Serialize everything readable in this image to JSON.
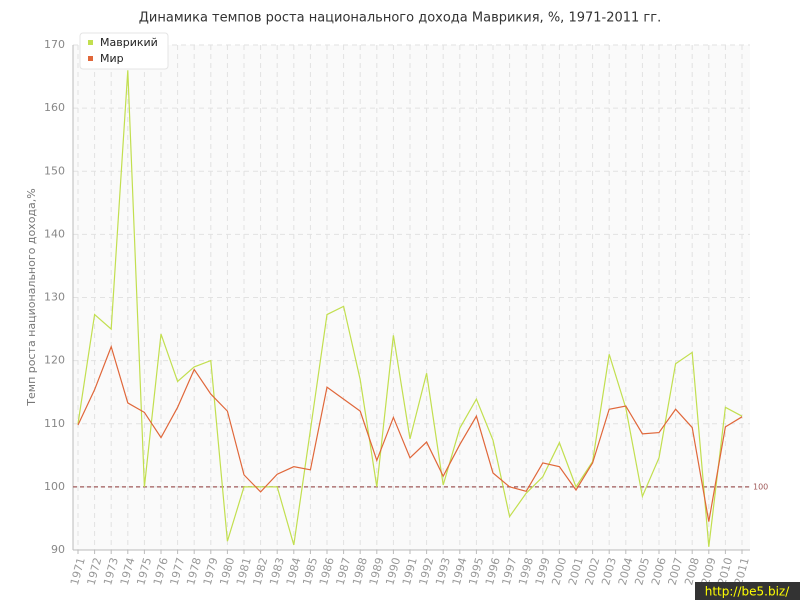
{
  "chart_data": {
    "type": "line",
    "title": "Динамика темпов роста национального дохода Маврикия, %, 1971-2011 гг.",
    "y_label": "Темп роста национального дохода,%",
    "categories": [
      "1971",
      "1972",
      "1973",
      "1974",
      "1975",
      "1976",
      "1977",
      "1978",
      "1979",
      "1980",
      "1981",
      "1982",
      "1983",
      "1984",
      "1985",
      "1986",
      "1987",
      "1988",
      "1989",
      "1990",
      "1991",
      "1992",
      "1993",
      "1994",
      "1995",
      "1996",
      "1997",
      "1998",
      "1999",
      "2000",
      "2001",
      "2002",
      "2003",
      "2004",
      "2005",
      "2006",
      "2007",
      "2008",
      "2009",
      "2010",
      "2011"
    ],
    "series": [
      {
        "name": "Маврикий",
        "color": "#c2df4f",
        "values": [
          110,
          127.3,
          125,
          166,
          100,
          124.2,
          116.7,
          119,
          120,
          91.4,
          100,
          100,
          100,
          90.8,
          109,
          127.3,
          128.6,
          117,
          100,
          124,
          107.6,
          118,
          100.3,
          109.3,
          113.9,
          107.4,
          95.3,
          99,
          101.6,
          107,
          100,
          104,
          121,
          112.5,
          98.5,
          104.6,
          119.5,
          121.3,
          90.5,
          112.6,
          111.2
        ]
      },
      {
        "name": "Мир",
        "color": "#e0673a",
        "values": [
          109.8,
          115.4,
          122.2,
          113.3,
          111.8,
          107.8,
          112.6,
          118.6,
          114.7,
          112,
          101.9,
          99.2,
          102,
          103.2,
          102.7,
          115.8,
          113.9,
          112,
          104.2,
          111,
          104.6,
          107.1,
          101.7,
          106.7,
          111.2,
          102.2,
          100,
          99.3,
          103.8,
          103.2,
          99.5,
          103.8,
          112.3,
          112.8,
          108.4,
          108.6,
          112.3,
          109.4,
          94.5,
          109.5,
          111.1
        ]
      }
    ],
    "reference_line": {
      "value": 100,
      "label": 100,
      "color": "#a05a5a"
    },
    "ylim": [
      90,
      170
    ],
    "yticks": [
      90,
      100,
      110,
      120,
      130,
      140,
      150,
      160,
      170
    ],
    "grid": true,
    "legend": "top-left",
    "watermark": "http://be5.biz/"
  }
}
